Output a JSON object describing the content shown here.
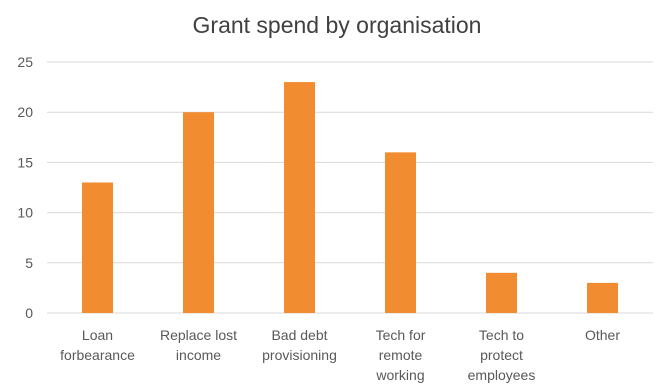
{
  "chart_data": {
    "type": "bar",
    "title": "Grant spend by organisation",
    "categories": [
      "Loan forbearance",
      "Replace lost income",
      "Bad debt provisioning",
      "Tech for remote working",
      "Tech to protect employees",
      "Other"
    ],
    "category_label_lines": [
      [
        "Loan",
        "forbearance"
      ],
      [
        "Replace lost",
        "income"
      ],
      [
        "Bad debt",
        "provisioning"
      ],
      [
        "Tech for",
        "remote",
        "working"
      ],
      [
        "Tech to",
        "protect",
        "employees"
      ],
      [
        "Other"
      ]
    ],
    "values": [
      13,
      20,
      23,
      16,
      4,
      3
    ],
    "ylim": [
      0,
      25
    ],
    "yticks": [
      0,
      5,
      10,
      15,
      20,
      25
    ],
    "ytick_labels": [
      "0",
      "5",
      "10",
      "15",
      "20",
      "25"
    ],
    "xlabel": "",
    "ylabel": "",
    "grid": true,
    "legend": "none",
    "bar_color": "#F28C30",
    "grid_color": "#D9D9D9"
  }
}
